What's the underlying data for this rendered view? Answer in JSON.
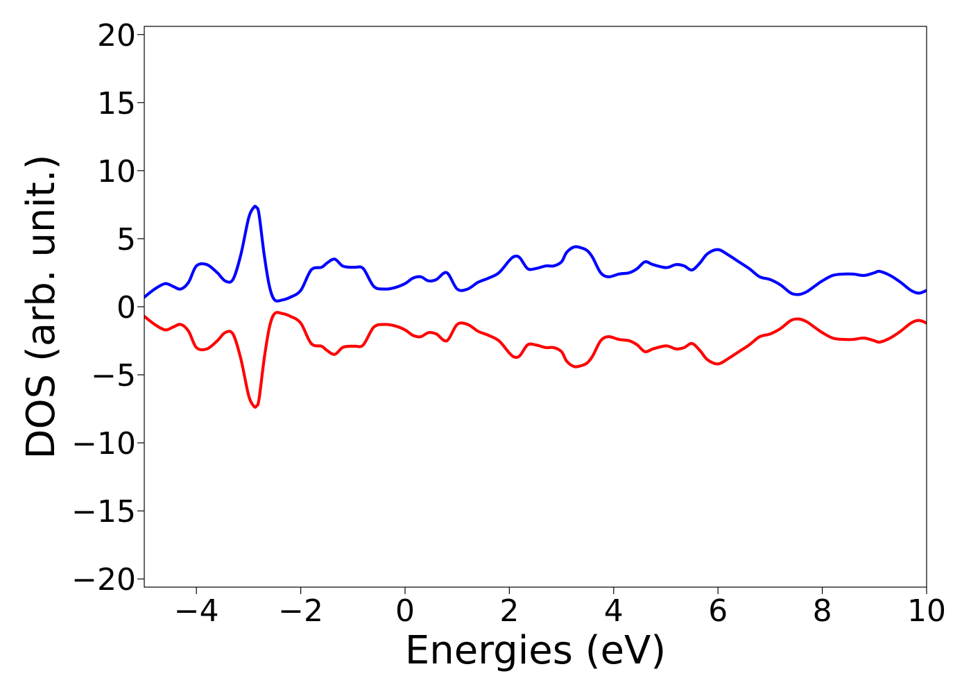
{
  "chart_data": {
    "type": "line",
    "title": "",
    "xlabel": "Energies (eV)",
    "ylabel": "DOS (arb. unit.)",
    "xlim": [
      -5,
      10
    ],
    "ylim": [
      -20.6,
      20.6
    ],
    "grid": false,
    "x_ticks": [
      -4,
      -2,
      0,
      2,
      4,
      6,
      8,
      10
    ],
    "x_tick_labels": [
      "−4",
      "−2",
      "0",
      "2",
      "4",
      "6",
      "8",
      "10"
    ],
    "y_ticks": [
      20,
      15,
      10,
      5,
      0,
      -5,
      -10,
      -15,
      -20
    ],
    "y_tick_labels": [
      "20",
      "15",
      "10",
      "5",
      "0",
      "−5",
      "−10",
      "−15",
      "−20"
    ],
    "series": [
      {
        "color": "#0000ff",
        "x": [
          -5.0,
          -4.8,
          -4.6,
          -4.45,
          -4.3,
          -4.15,
          -4.0,
          -3.8,
          -3.6,
          -3.45,
          -3.3,
          -3.15,
          -3.0,
          -2.9,
          -2.85,
          -2.8,
          -2.7,
          -2.6,
          -2.5,
          -2.35,
          -2.2,
          -2.0,
          -1.8,
          -1.6,
          -1.5,
          -1.35,
          -1.2,
          -1.05,
          -0.95,
          -0.8,
          -0.6,
          -0.4,
          -0.2,
          0.0,
          0.15,
          0.3,
          0.45,
          0.6,
          0.8,
          1.0,
          1.2,
          1.4,
          1.6,
          1.8,
          2.0,
          2.1,
          2.2,
          2.35,
          2.5,
          2.7,
          2.85,
          3.0,
          3.1,
          3.25,
          3.4,
          3.5,
          3.6,
          3.75,
          3.9,
          4.1,
          4.3,
          4.45,
          4.6,
          4.75,
          4.95,
          5.05,
          5.2,
          5.35,
          5.5,
          5.65,
          5.8,
          6.0,
          6.2,
          6.4,
          6.6,
          6.8,
          7.0,
          7.2,
          7.4,
          7.55,
          7.7,
          7.85,
          8.0,
          8.2,
          8.4,
          8.6,
          8.8,
          9.0,
          9.1,
          9.3,
          9.5,
          9.7,
          9.85,
          10.0
        ],
        "values": [
          0.7,
          1.3,
          1.7,
          1.5,
          1.3,
          1.8,
          3.0,
          3.1,
          2.5,
          1.9,
          2.0,
          3.8,
          6.5,
          7.3,
          7.3,
          6.8,
          3.8,
          1.5,
          0.5,
          0.5,
          0.7,
          1.2,
          2.7,
          2.9,
          3.2,
          3.5,
          3.0,
          2.9,
          2.9,
          2.8,
          1.5,
          1.3,
          1.4,
          1.7,
          2.1,
          2.2,
          1.9,
          2.0,
          2.5,
          1.3,
          1.3,
          1.8,
          2.1,
          2.5,
          3.4,
          3.7,
          3.6,
          2.8,
          2.8,
          3.0,
          3.0,
          3.3,
          4.0,
          4.4,
          4.3,
          4.1,
          3.6,
          2.5,
          2.2,
          2.4,
          2.5,
          2.8,
          3.3,
          3.1,
          2.9,
          2.9,
          3.1,
          3.0,
          2.7,
          3.2,
          3.9,
          4.2,
          3.8,
          3.3,
          2.8,
          2.2,
          2.0,
          1.6,
          1.0,
          0.9,
          1.1,
          1.5,
          1.9,
          2.3,
          2.4,
          2.4,
          2.3,
          2.5,
          2.6,
          2.3,
          1.8,
          1.2,
          1.0,
          1.2
        ]
      },
      {
        "color": "#ff0000",
        "x": [
          -5.0,
          -4.8,
          -4.6,
          -4.45,
          -4.3,
          -4.15,
          -4.0,
          -3.8,
          -3.6,
          -3.45,
          -3.3,
          -3.15,
          -3.0,
          -2.9,
          -2.85,
          -2.8,
          -2.7,
          -2.6,
          -2.5,
          -2.35,
          -2.2,
          -2.0,
          -1.8,
          -1.6,
          -1.5,
          -1.35,
          -1.2,
          -1.05,
          -0.95,
          -0.8,
          -0.6,
          -0.4,
          -0.2,
          0.0,
          0.15,
          0.3,
          0.45,
          0.6,
          0.8,
          1.0,
          1.2,
          1.4,
          1.6,
          1.8,
          2.0,
          2.1,
          2.2,
          2.35,
          2.5,
          2.7,
          2.85,
          3.0,
          3.1,
          3.25,
          3.4,
          3.5,
          3.6,
          3.75,
          3.9,
          4.1,
          4.3,
          4.45,
          4.6,
          4.75,
          4.95,
          5.05,
          5.2,
          5.35,
          5.5,
          5.65,
          5.8,
          6.0,
          6.2,
          6.4,
          6.6,
          6.8,
          7.0,
          7.2,
          7.4,
          7.55,
          7.7,
          7.85,
          8.0,
          8.2,
          8.4,
          8.6,
          8.8,
          9.0,
          9.1,
          9.3,
          9.5,
          9.7,
          9.85,
          10.0
        ],
        "values": [
          -0.7,
          -1.3,
          -1.7,
          -1.5,
          -1.3,
          -1.8,
          -3.0,
          -3.1,
          -2.5,
          -1.9,
          -2.0,
          -3.8,
          -6.5,
          -7.3,
          -7.3,
          -6.8,
          -3.8,
          -1.5,
          -0.5,
          -0.5,
          -0.7,
          -1.2,
          -2.7,
          -2.9,
          -3.2,
          -3.5,
          -3.0,
          -2.9,
          -2.9,
          -2.8,
          -1.5,
          -1.3,
          -1.4,
          -1.7,
          -2.1,
          -2.2,
          -1.9,
          -2.0,
          -2.5,
          -1.3,
          -1.3,
          -1.8,
          -2.1,
          -2.5,
          -3.4,
          -3.7,
          -3.6,
          -2.8,
          -2.8,
          -3.0,
          -3.0,
          -3.3,
          -4.0,
          -4.4,
          -4.3,
          -4.1,
          -3.6,
          -2.5,
          -2.2,
          -2.4,
          -2.5,
          -2.8,
          -3.3,
          -3.1,
          -2.9,
          -2.9,
          -3.1,
          -3.0,
          -2.7,
          -3.2,
          -3.9,
          -4.2,
          -3.8,
          -3.3,
          -2.8,
          -2.2,
          -2.0,
          -1.6,
          -1.0,
          -0.9,
          -1.1,
          -1.5,
          -1.9,
          -2.3,
          -2.4,
          -2.4,
          -2.3,
          -2.5,
          -2.6,
          -2.3,
          -1.8,
          -1.2,
          -1.0,
          -1.2
        ]
      }
    ]
  }
}
